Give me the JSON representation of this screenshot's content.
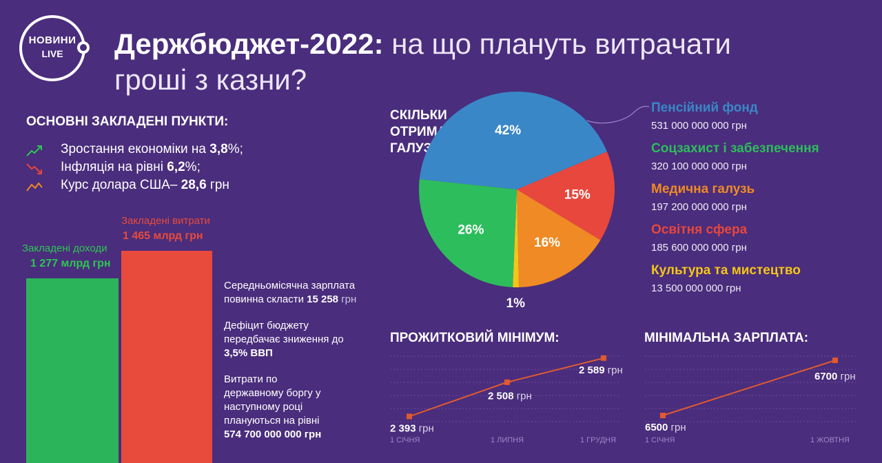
{
  "logo": {
    "line1": "НОВИНИ",
    "line2": "LIVE"
  },
  "title": {
    "bold": "Держбюджет-2022:",
    "rest_line1": "на що плануть витрачати",
    "rest_line2": "гроші з казни?"
  },
  "main_points": {
    "heading": "ОСНОВНІ ЗАКЛАДЕНІ ПУНКТИ:",
    "items": [
      {
        "icon": "trend-up-icon",
        "color": "#2dc653",
        "text": "Зростання економіки на ",
        "value": "3,8",
        "suffix": "%;"
      },
      {
        "icon": "trend-down-icon",
        "color": "#e7473c",
        "text": "Інфляція на рівні ",
        "value": "6,2",
        "suffix": "%;"
      },
      {
        "icon": "trend-zigzag-icon",
        "color": "#ef8a25",
        "text": "Курс долара США– ",
        "value": "28,6",
        "suffix": " грн"
      }
    ]
  },
  "budget_bars": {
    "unit": "млрд грн",
    "items": [
      {
        "label": "Закладені доходи",
        "value": 1277,
        "display": "1 277 млрд грн",
        "color": "#2bb45a",
        "label_color": "#2dc653"
      },
      {
        "label": "Закладені витрати",
        "value": 1465,
        "display": "1 465 млрд грн",
        "color": "#e84b3c",
        "label_color": "#e84b3c"
      }
    ]
  },
  "notes": [
    {
      "lines": [
        "Середньомісячна зарплата"
      ],
      "last_prefix": "повинна скласти ",
      "bold": "15 258",
      "suffix": " грн"
    },
    {
      "lines": [
        "Дефіцит бюджету",
        "передбачає зниження до"
      ],
      "last_prefix": "",
      "bold": "3,5% ВВП",
      "suffix": ""
    },
    {
      "lines": [
        "Витрати по",
        "державному боргу у",
        "наступному році",
        "плануються на рівні"
      ],
      "last_prefix": "",
      "bold": "574 700 000 000 грн",
      "suffix": ""
    }
  ],
  "pie_title": [
    "СКІЛЬКИ",
    "ОТРИМАЮТЬ",
    "ГАЛУЗІ:"
  ],
  "legend": [
    {
      "name": "Пенсійний фонд",
      "amount": "531 000 000 000 грн",
      "color": "#3a87c8"
    },
    {
      "name": "Соцзахист і забезпечення",
      "amount": "320 100 000 000 грн",
      "color": "#2dbd5c"
    },
    {
      "name": "Медична галузь",
      "amount": "197 200 000 000 грн",
      "color": "#ef8a25"
    },
    {
      "name": "Освітня сфера",
      "amount": "185 600 000 000 грн",
      "color": "#e7473c"
    },
    {
      "name": "Культура та мистецтво",
      "amount": "13 500 000 000 грн",
      "color": "#f5c518"
    }
  ],
  "living_minimum": {
    "heading": "ПРОЖИТКОВИЙ МІНІМУМ:",
    "unit": "грн"
  },
  "minimum_wage": {
    "heading": "МІНІМАЛЬНА ЗАРПЛАТА:",
    "unit": "грн"
  },
  "chart_data": [
    {
      "type": "pie",
      "title": "СКІЛЬКИ ОТРИМАЮТЬ ГАЛУЗІ:",
      "categories": [
        "Пенсійний фонд",
        "Освітня сфера",
        "Медична галузь",
        "Культура та мистецтво",
        "Соцзахист і забезпечення"
      ],
      "values": [
        42,
        15,
        16,
        1,
        26
      ],
      "labels": [
        "42%",
        "15%",
        "16%",
        "1%",
        "26%"
      ],
      "colors": [
        "#3a87c8",
        "#e7473c",
        "#ef8a25",
        "#f5c518",
        "#2dbd5c"
      ]
    },
    {
      "type": "line",
      "title": "ПРОЖИТКОВИЙ МІНІМУМ:",
      "x": [
        "1 СІЧНЯ",
        "1 ЛИПНЯ",
        "1 ГРУДНЯ"
      ],
      "values": [
        2393,
        2508,
        2589
      ],
      "labels": [
        "2 393",
        "2 508",
        "2 589"
      ],
      "ylim": [
        2350,
        2600
      ],
      "color": "#e05a30"
    },
    {
      "type": "line",
      "title": "МІНІМАЛЬНА ЗАРПЛАТА:",
      "x": [
        "1 СІЧНЯ",
        "1 ЖОВТНЯ"
      ],
      "values": [
        6500,
        6700
      ],
      "labels": [
        "6500",
        "6700"
      ],
      "ylim": [
        6450,
        6720
      ],
      "color": "#e05a30"
    }
  ]
}
